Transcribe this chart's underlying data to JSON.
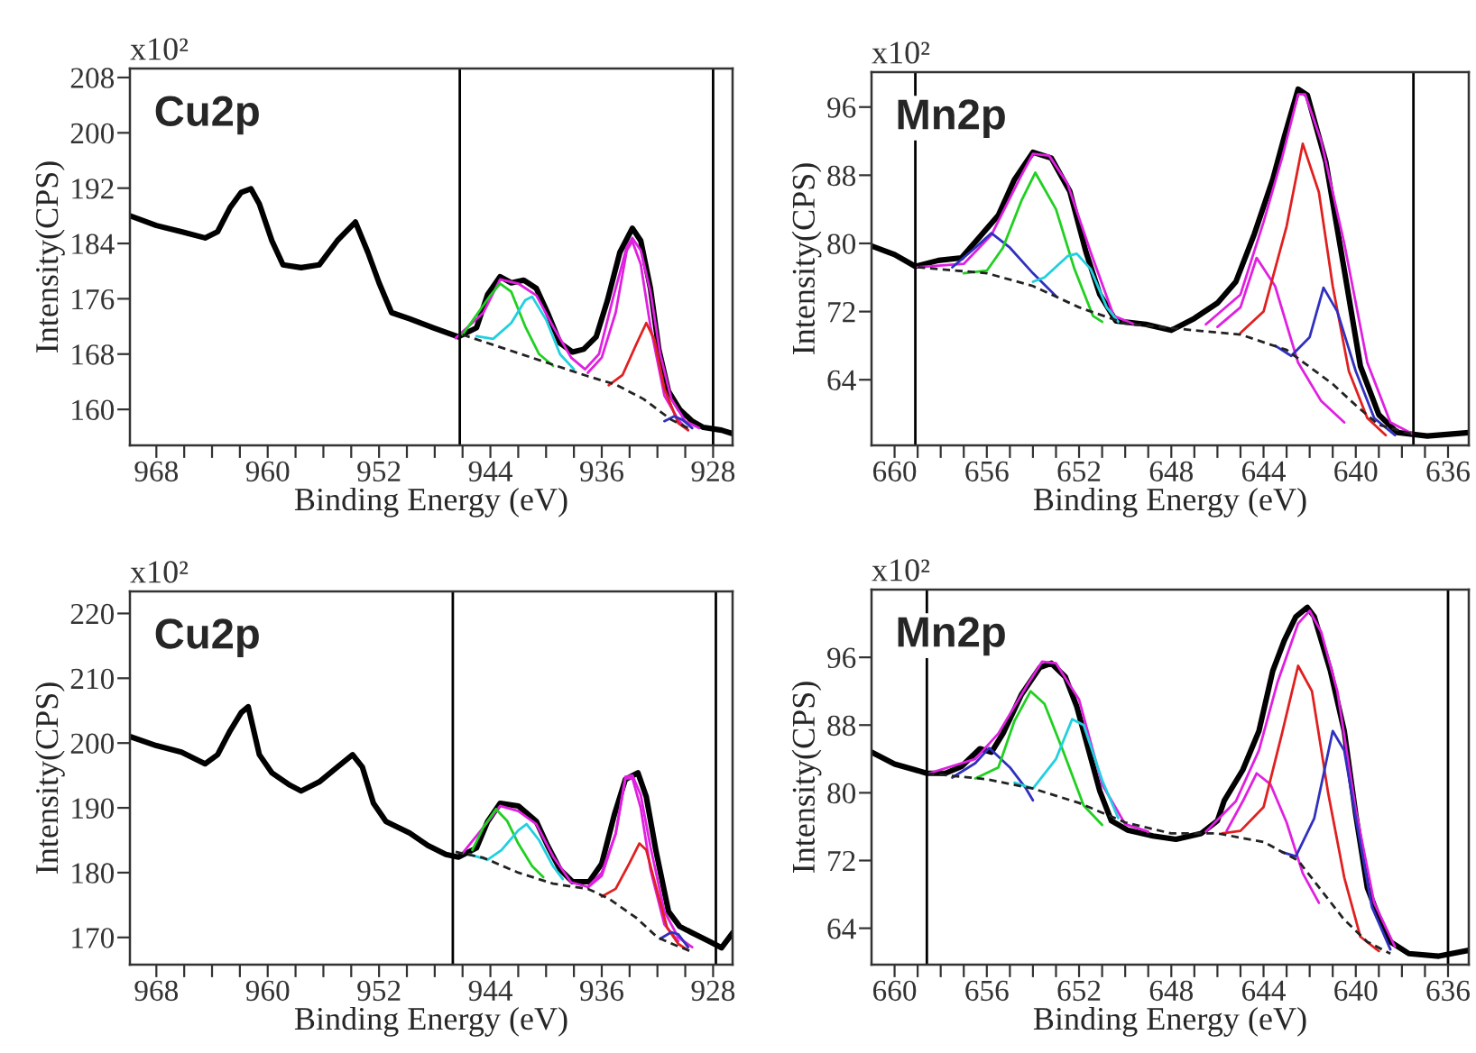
{
  "chart_data": [
    {
      "type": "line",
      "title": "Cu2p",
      "xlabel": "Binding Energy (eV)",
      "ylabel": "Intensity(CPS)",
      "annotations": [
        "x10²"
      ],
      "xlim": [
        969.9,
        926.6
      ],
      "ylim": [
        154.8,
        209.3
      ],
      "xticks": [
        {
          "value": 968,
          "label": "968"
        },
        {
          "value": 966,
          "label": null
        },
        {
          "value": 964,
          "label": null
        },
        {
          "value": 962,
          "label": null
        },
        {
          "value": 960,
          "label": "960"
        },
        {
          "value": 958,
          "label": null
        },
        {
          "value": 956,
          "label": null
        },
        {
          "value": 954,
          "label": null
        },
        {
          "value": 952,
          "label": "952"
        },
        {
          "value": 950,
          "label": null
        },
        {
          "value": 948,
          "label": null
        },
        {
          "value": 946,
          "label": null
        },
        {
          "value": 944,
          "label": "944"
        },
        {
          "value": 942,
          "label": null
        },
        {
          "value": 940,
          "label": null
        },
        {
          "value": 938,
          "label": null
        },
        {
          "value": 936,
          "label": "936"
        },
        {
          "value": 934,
          "label": null
        },
        {
          "value": 932,
          "label": null
        },
        {
          "value": 930,
          "label": null
        },
        {
          "value": 928,
          "label": "928"
        }
      ],
      "yticks": [
        160,
        168,
        176,
        184,
        192,
        200,
        208
      ],
      "grid": false,
      "ref_lines": [
        {
          "axis": "x",
          "value": 946.2,
          "color": "#000000"
        },
        {
          "axis": "x",
          "value": 928.0,
          "color": "#000000"
        }
      ],
      "series": [
        {
          "color": "#000000",
          "line_style": "solid",
          "x": [
            969.9,
            968,
            966.2,
            964.5,
            963.6,
            962.7,
            961.9,
            961.2,
            960.6,
            959.7,
            958.9,
            957.6,
            956.3,
            955.0,
            953.7,
            952.8,
            952.0,
            951.1,
            949.8,
            948.1,
            946.3,
            945.0,
            944.2,
            943.3,
            942.5,
            941.6,
            940.7,
            939.9,
            939.0,
            938.1,
            937.3,
            936.4,
            935.6,
            934.7,
            933.8,
            933.2,
            932.5,
            931.9,
            931.2,
            930.4,
            929.5,
            928.7,
            927.4,
            926.6
          ],
          "values": [
            188,
            186.6,
            185.7,
            184.8,
            185.7,
            189.2,
            191.4,
            191.9,
            189.7,
            184.4,
            180.9,
            180.5,
            180.9,
            184.4,
            187.1,
            182.7,
            178.3,
            174,
            173.1,
            171.8,
            170.5,
            171.8,
            176.6,
            179.2,
            178.3,
            178.7,
            177.5,
            174,
            169.6,
            168.3,
            168.7,
            170.5,
            175.7,
            182.7,
            186.2,
            184.4,
            177.5,
            168.7,
            162.6,
            160,
            158.3,
            157.4,
            157,
            156.5
          ]
        },
        {
          "color": "#e020e0",
          "line_style": "solid",
          "x": [
            946.5,
            944.5,
            943.3,
            942,
            940.7,
            939.5,
            938.2,
            937.2,
            936.2,
            935.2,
            934.2,
            933.8,
            933.2,
            932.5,
            931.8,
            931,
            930,
            929
          ],
          "values": [
            170.3,
            174,
            178.8,
            178.2,
            176.5,
            172,
            167.5,
            165.8,
            168,
            176,
            183.5,
            184.8,
            183,
            177,
            168,
            161.5,
            158.3,
            157.3
          ]
        },
        {
          "color": "#20d020",
          "line_style": "solid",
          "x": [
            946,
            944,
            943.3,
            942.5,
            941.5,
            940.5,
            939.5
          ],
          "values": [
            170.8,
            176.5,
            178.2,
            177,
            172,
            168,
            166.3
          ]
        },
        {
          "color": "#20d0e0",
          "line_style": "solid",
          "x": [
            945,
            943.8,
            942.5,
            941.5,
            941,
            940,
            939,
            938
          ],
          "values": [
            170.6,
            170.2,
            172.5,
            175.8,
            176.3,
            173,
            168,
            165.8
          ]
        },
        {
          "color": "#e020e0",
          "line_style": "solid",
          "x": [
            937,
            936,
            935,
            934.2,
            933.8,
            933.2,
            932.5,
            931.5,
            930.5,
            929.8
          ],
          "values": [
            165.3,
            167.5,
            174,
            183,
            184.3,
            181,
            172,
            162,
            158.5,
            157
          ]
        },
        {
          "color": "#e02020",
          "line_style": "solid",
          "x": [
            935.5,
            934.5,
            933.5,
            932.8,
            932.2,
            931.5,
            930.5,
            929.8
          ],
          "values": [
            163.5,
            165,
            169.5,
            172.5,
            170,
            163,
            158,
            157
          ]
        },
        {
          "color": "#3030c0",
          "line_style": "solid",
          "x": [
            931.5,
            930.8,
            930.2,
            929.5
          ],
          "values": [
            158.3,
            159,
            158.5,
            157.3
          ]
        },
        {
          "color": "#222222",
          "line_style": "dashed",
          "x": [
            946,
            943,
            940,
            937,
            935,
            933,
            931,
            929.5
          ],
          "values": [
            170.8,
            168.8,
            166.8,
            164.8,
            163.6,
            161.5,
            158.5,
            157
          ]
        }
      ]
    },
    {
      "type": "line",
      "title": "Mn2p",
      "xlabel": "Binding Energy (eV)",
      "ylabel": "Intensity(CPS)",
      "annotations": [
        "x10²"
      ],
      "xlim": [
        661.0,
        635.1
      ],
      "ylim": [
        56.3,
        100.1
      ],
      "xticks": [
        {
          "value": 660,
          "label": "660"
        },
        {
          "value": 659,
          "label": null
        },
        {
          "value": 658,
          "label": null
        },
        {
          "value": 657,
          "label": null
        },
        {
          "value": 656,
          "label": "656"
        },
        {
          "value": 655,
          "label": null
        },
        {
          "value": 654,
          "label": null
        },
        {
          "value": 653,
          "label": null
        },
        {
          "value": 652,
          "label": "652"
        },
        {
          "value": 651,
          "label": null
        },
        {
          "value": 650,
          "label": null
        },
        {
          "value": 649,
          "label": null
        },
        {
          "value": 648,
          "label": "648"
        },
        {
          "value": 647,
          "label": null
        },
        {
          "value": 646,
          "label": null
        },
        {
          "value": 645,
          "label": null
        },
        {
          "value": 644,
          "label": "644"
        },
        {
          "value": 643,
          "label": null
        },
        {
          "value": 642,
          "label": null
        },
        {
          "value": 641,
          "label": null
        },
        {
          "value": 640,
          "label": "640"
        },
        {
          "value": 639,
          "label": null
        },
        {
          "value": 638,
          "label": null
        },
        {
          "value": 637,
          "label": null
        },
        {
          "value": 636,
          "label": "636"
        }
      ],
      "yticks": [
        64,
        72,
        80,
        88,
        96
      ],
      "grid": false,
      "ref_lines": [
        {
          "axis": "x",
          "value": 659.1,
          "color": "#000000"
        },
        {
          "axis": "x",
          "value": 637.5,
          "color": "#000000"
        }
      ],
      "series": [
        {
          "color": "#000000",
          "line_style": "solid",
          "x": [
            661.0,
            660,
            659.1,
            658.1,
            657.1,
            656.3,
            655.5,
            654.8,
            654.0,
            653.2,
            652.4,
            651.7,
            651.1,
            650.4,
            649.1,
            648.0,
            647.0,
            646.0,
            645.2,
            644.4,
            643.6,
            643.1,
            642.5,
            642.1,
            641.3,
            640.5,
            639.8,
            639.0,
            638.2,
            636.9,
            635.1
          ],
          "values": [
            79.7,
            78.7,
            77.3,
            78,
            78.3,
            80.8,
            83.3,
            87.5,
            90.7,
            90,
            86.1,
            79,
            74,
            70.9,
            70.5,
            69.8,
            71.2,
            73,
            75.5,
            81.1,
            87.5,
            92.5,
            98.1,
            97.4,
            89.6,
            76.9,
            65.6,
            59.9,
            57.8,
            57.4,
            57.8
          ]
        },
        {
          "color": "#e020e0",
          "line_style": "solid",
          "x": [
            659,
            657,
            655.8,
            654.5,
            654,
            653.3,
            652.5,
            651.5,
            650.5,
            649.5
          ],
          "values": [
            77.2,
            77.6,
            81,
            88,
            90.5,
            90.3,
            87,
            79,
            71.5,
            70.4
          ]
        },
        {
          "color": "#e020e0",
          "line_style": "solid",
          "x": [
            646.5,
            645,
            644,
            643.2,
            642.5,
            642.2,
            641.5,
            640.5,
            639.5,
            638.5,
            637.5
          ],
          "values": [
            70.5,
            74,
            82.5,
            90,
            97.5,
            97.5,
            92,
            80,
            66,
            59,
            57.6
          ]
        },
        {
          "color": "#3030c0",
          "line_style": "solid",
          "x": [
            657.5,
            656.5,
            655.8,
            655,
            654,
            653
          ],
          "values": [
            77.2,
            79.5,
            81.2,
            79.5,
            76.5,
            73.8
          ]
        },
        {
          "color": "#20d020",
          "line_style": "solid",
          "x": [
            657,
            656,
            655.3,
            654.5,
            653.9,
            653,
            652.2,
            651.4,
            651
          ],
          "values": [
            76.5,
            76.8,
            79.5,
            85,
            88.3,
            84,
            77,
            71.5,
            70.8
          ]
        },
        {
          "color": "#20d0e0",
          "line_style": "solid",
          "x": [
            654,
            653.5,
            652.5,
            652.1,
            651.5,
            650.8,
            650.3
          ],
          "values": [
            75.5,
            76,
            78.5,
            78.8,
            77,
            72.5,
            70.8
          ]
        },
        {
          "color": "#e020e0",
          "line_style": "solid",
          "x": [
            646,
            645,
            644.3,
            643.5,
            642.5,
            641.5,
            640.5
          ],
          "values": [
            70.2,
            72.5,
            78.3,
            75,
            66,
            61.5,
            59
          ]
        },
        {
          "color": "#e02020",
          "line_style": "solid",
          "x": [
            645,
            644,
            643,
            642.3,
            641.6,
            641,
            640.3,
            639.5,
            638.7
          ],
          "values": [
            69.5,
            72,
            82,
            91.7,
            86,
            75,
            65,
            59.5,
            57.5
          ]
        },
        {
          "color": "#3030c0",
          "line_style": "solid",
          "x": [
            643.5,
            642.8,
            642,
            641.4,
            640.8,
            640,
            639.2,
            638.3
          ],
          "values": [
            68,
            66.8,
            69,
            74.8,
            72,
            65,
            59.5,
            57.5
          ]
        },
        {
          "color": "#222222",
          "line_style": "dashed",
          "x": [
            659,
            656,
            654,
            652,
            650,
            647,
            645,
            643,
            641,
            640,
            639,
            637.5
          ],
          "values": [
            77.2,
            76.5,
            75,
            72.5,
            70.6,
            69.8,
            69.3,
            67.5,
            63.5,
            61,
            58.7,
            57.6
          ]
        }
      ]
    },
    {
      "type": "line",
      "title": "Cu2p",
      "xlabel": "Binding Energy (eV)",
      "ylabel": "Intensity(CPS)",
      "annotations": [
        "x10²"
      ],
      "xlim": [
        969.9,
        926.6
      ],
      "ylim": [
        165.8,
        223.4
      ],
      "xticks": [
        {
          "value": 968,
          "label": "968"
        },
        {
          "value": 966,
          "label": null
        },
        {
          "value": 964,
          "label": null
        },
        {
          "value": 962,
          "label": null
        },
        {
          "value": 960,
          "label": "960"
        },
        {
          "value": 958,
          "label": null
        },
        {
          "value": 956,
          "label": null
        },
        {
          "value": 954,
          "label": null
        },
        {
          "value": 952,
          "label": "952"
        },
        {
          "value": 950,
          "label": null
        },
        {
          "value": 948,
          "label": null
        },
        {
          "value": 946,
          "label": null
        },
        {
          "value": 944,
          "label": "944"
        },
        {
          "value": 942,
          "label": null
        },
        {
          "value": 940,
          "label": null
        },
        {
          "value": 938,
          "label": null
        },
        {
          "value": 936,
          "label": "936"
        },
        {
          "value": 934,
          "label": null
        },
        {
          "value": 932,
          "label": null
        },
        {
          "value": 930,
          "label": null
        },
        {
          "value": 928,
          "label": "928"
        }
      ],
      "yticks": [
        170,
        180,
        190,
        200,
        210,
        220
      ],
      "grid": false,
      "ref_lines": [
        {
          "axis": "x",
          "value": 946.7,
          "color": "#000000"
        },
        {
          "axis": "x",
          "value": 927.8,
          "color": "#000000"
        }
      ],
      "series": [
        {
          "color": "#000000",
          "line_style": "solid",
          "x": [
            969.9,
            968,
            966.2,
            964.5,
            963.6,
            962.7,
            961.9,
            961.4,
            960.6,
            959.7,
            958.4,
            957.6,
            956.3,
            955.0,
            953.9,
            953.2,
            952.4,
            951.5,
            949.8,
            948.5,
            947.2,
            946.3,
            945.0,
            944.2,
            943.3,
            942.0,
            940.7,
            939.9,
            939.0,
            938.1,
            936.9,
            936.0,
            935.1,
            934.3,
            933.4,
            932.8,
            932.1,
            931.2,
            930.4,
            929.5,
            928.2,
            927.4,
            926.6
          ],
          "values": [
            201,
            199.6,
            198.6,
            196.8,
            198.2,
            201.9,
            204.7,
            205.6,
            198.2,
            195.4,
            193.5,
            192.6,
            194,
            196.3,
            198.2,
            196.3,
            190.7,
            187.9,
            186.1,
            184.2,
            182.8,
            182.4,
            183.8,
            187.9,
            190.7,
            190.3,
            187.9,
            184.2,
            180.5,
            178.6,
            178.6,
            181.4,
            188.9,
            194.4,
            195.4,
            191.7,
            183.3,
            174,
            171.7,
            170.7,
            169.3,
            168.4,
            170.7
          ]
        },
        {
          "color": "#e020e0",
          "line_style": "solid",
          "x": [
            946,
            944.5,
            943.3,
            942,
            940.7,
            939.5,
            938.2,
            937,
            936,
            935,
            934.3,
            933.8,
            933.2,
            932.5,
            931.5,
            930.5,
            929.5
          ],
          "values": [
            183,
            187,
            190.3,
            189.5,
            187.5,
            182.5,
            178.5,
            177.8,
            180,
            186,
            194.8,
            195,
            192,
            184,
            174,
            170,
            168.5
          ]
        },
        {
          "color": "#20d020",
          "line_style": "solid",
          "x": [
            945.3,
            944.5,
            943.6,
            942.8,
            942,
            941,
            940.2
          ],
          "values": [
            183.5,
            187,
            189.8,
            188,
            184.5,
            181,
            179.3
          ]
        },
        {
          "color": "#20d0e0",
          "line_style": "solid",
          "x": [
            945.5,
            944.2,
            943.2,
            942,
            941.4,
            940.5,
            939.5,
            938.8
          ],
          "values": [
            182.8,
            182,
            183.5,
            186.5,
            187.5,
            185,
            181,
            179
          ]
        },
        {
          "color": "#e020e0",
          "line_style": "solid",
          "x": [
            937,
            936,
            935,
            934.3,
            933.8,
            933.2,
            932.5,
            931.5,
            930.5
          ],
          "values": [
            177.7,
            179.5,
            186,
            194.5,
            194.6,
            190,
            180.5,
            172,
            169.4
          ]
        },
        {
          "color": "#e02020",
          "line_style": "solid",
          "x": [
            936,
            935,
            934,
            933.3,
            932.8,
            932,
            931.3,
            930.5,
            929.8
          ],
          "values": [
            176.3,
            177.5,
            181.5,
            184.5,
            183.5,
            177,
            171.5,
            169,
            168
          ]
        },
        {
          "color": "#3030c0",
          "line_style": "solid",
          "x": [
            931.8,
            931,
            930.5,
            929.8
          ],
          "values": [
            169.8,
            170.8,
            170.5,
            168.5
          ]
        },
        {
          "color": "#222222",
          "line_style": "dashed",
          "x": [
            946.5,
            944.5,
            942,
            939.5,
            937,
            935.5,
            933.5,
            932,
            930.5,
            929.5
          ],
          "values": [
            183.2,
            182.3,
            180,
            178.3,
            177.5,
            176,
            173,
            170,
            168.6,
            167.8
          ]
        }
      ]
    },
    {
      "type": "line",
      "title": "Mn2p",
      "xlabel": "Binding Energy (eV)",
      "ylabel": "Intensity(CPS)",
      "annotations": [
        "x10²"
      ],
      "xlim": [
        661.0,
        635.1
      ],
      "ylim": [
        59.7,
        104.0
      ],
      "xticks": [
        {
          "value": 660,
          "label": "660"
        },
        {
          "value": 659,
          "label": null
        },
        {
          "value": 658,
          "label": null
        },
        {
          "value": 657,
          "label": null
        },
        {
          "value": 656,
          "label": "656"
        },
        {
          "value": 655,
          "label": null
        },
        {
          "value": 654,
          "label": null
        },
        {
          "value": 653,
          "label": null
        },
        {
          "value": 652,
          "label": "652"
        },
        {
          "value": 651,
          "label": null
        },
        {
          "value": 650,
          "label": null
        },
        {
          "value": 649,
          "label": null
        },
        {
          "value": 648,
          "label": "648"
        },
        {
          "value": 647,
          "label": null
        },
        {
          "value": 646,
          "label": null
        },
        {
          "value": 645,
          "label": null
        },
        {
          "value": 644,
          "label": "644"
        },
        {
          "value": 643,
          "label": null
        },
        {
          "value": 642,
          "label": null
        },
        {
          "value": 641,
          "label": null
        },
        {
          "value": 640,
          "label": "640"
        },
        {
          "value": 639,
          "label": null
        },
        {
          "value": 638,
          "label": null
        },
        {
          "value": 637,
          "label": null
        },
        {
          "value": 636,
          "label": "636"
        }
      ],
      "yticks": [
        64,
        72,
        80,
        88,
        96
      ],
      "grid": false,
      "ref_lines": [
        {
          "axis": "x",
          "value": 658.6,
          "color": "#000000"
        },
        {
          "axis": "x",
          "value": 636.0,
          "color": "#000000"
        }
      ],
      "series": [
        {
          "color": "#000000",
          "line_style": "solid",
          "x": [
            661.0,
            660,
            659.1,
            658.6,
            657.8,
            657.1,
            656.3,
            655.8,
            655.3,
            654.5,
            653.7,
            653.2,
            652.6,
            652.1,
            651.6,
            651.1,
            650.6,
            649.9,
            648.8,
            647.8,
            646.7,
            646.0,
            645.7,
            644.9,
            644.2,
            643.6,
            643.1,
            642.6,
            642.1,
            641.8,
            641.1,
            640.5,
            640.0,
            639.5,
            639.0,
            638.5,
            637.7,
            636.4,
            635.1
          ],
          "values": [
            84.8,
            83.4,
            82.7,
            82.3,
            82.3,
            83.1,
            85.2,
            84.8,
            87,
            91.6,
            94.8,
            95.3,
            93.7,
            90.2,
            85.2,
            80.2,
            76.7,
            75.6,
            74.9,
            74.5,
            75.2,
            76.7,
            79.1,
            82.7,
            87.3,
            94.4,
            98,
            100.8,
            101.9,
            100.8,
            94.4,
            87.3,
            77.4,
            68.8,
            65.3,
            62.4,
            61,
            60.7,
            61.4
          ]
        },
        {
          "color": "#e020e0",
          "line_style": "solid",
          "x": [
            658.5,
            656.5,
            655.5,
            654.3,
            653.6,
            653,
            652,
            651,
            650,
            649
          ],
          "values": [
            82.3,
            84,
            87,
            92.5,
            95.5,
            95.3,
            91,
            81,
            76.3,
            75.4
          ]
        },
        {
          "color": "#e020e0",
          "line_style": "solid",
          "x": [
            646.5,
            645.2,
            644.2,
            643.4,
            642.5,
            642,
            641.5,
            640.8,
            640,
            639.2,
            638.3
          ],
          "values": [
            75.4,
            79,
            85,
            93,
            100,
            101.5,
            99,
            92,
            78,
            67,
            61.8
          ]
        },
        {
          "color": "#3030c0",
          "line_style": "solid",
          "x": [
            657.5,
            656.5,
            655.9,
            655,
            654.3,
            654
          ],
          "values": [
            81.8,
            83.5,
            85.3,
            83,
            80.5,
            79.1
          ]
        },
        {
          "color": "#20d020",
          "line_style": "solid",
          "x": [
            656.5,
            655.5,
            654.8,
            654.1,
            653.5,
            652.7,
            651.8,
            651
          ],
          "values": [
            81.7,
            83,
            88.5,
            92,
            90.5,
            85,
            78.5,
            76.2
          ]
        },
        {
          "color": "#20d0e0",
          "line_style": "solid",
          "x": [
            654.8,
            654,
            653,
            652.3,
            651.8,
            651,
            650.3
          ],
          "values": [
            81.2,
            80.5,
            84,
            88.7,
            88,
            81.5,
            77
          ]
        },
        {
          "color": "#e020e0",
          "line_style": "solid",
          "x": [
            645.6,
            644.9,
            644.3,
            643.7,
            643,
            642.3,
            641.6
          ],
          "values": [
            75.5,
            79,
            82.3,
            81,
            76.5,
            70.5,
            67
          ]
        },
        {
          "color": "#e02020",
          "line_style": "solid",
          "x": [
            645.8,
            645,
            644,
            643.2,
            642.5,
            641.9,
            641.2,
            640.5,
            639.8,
            639
          ],
          "values": [
            75.2,
            75.5,
            78.3,
            87,
            95,
            92,
            80,
            70,
            63,
            61.3
          ]
        },
        {
          "color": "#3030c0",
          "line_style": "solid",
          "x": [
            643.2,
            642.6,
            641.8,
            641,
            640.5,
            640,
            639.3,
            638.5
          ],
          "values": [
            73,
            72.5,
            77,
            87.3,
            85,
            77,
            66.5,
            61.5
          ]
        },
        {
          "color": "#222222",
          "line_style": "dashed",
          "x": [
            658.6,
            656,
            654,
            652,
            650,
            648,
            646,
            644,
            642.5,
            641.5,
            640.5,
            639.5,
            638.5
          ],
          "values": [
            82.3,
            81.6,
            80.5,
            78.8,
            76.5,
            75.2,
            75.2,
            74.2,
            72,
            68.5,
            65,
            62.4,
            61
          ]
        }
      ]
    }
  ]
}
